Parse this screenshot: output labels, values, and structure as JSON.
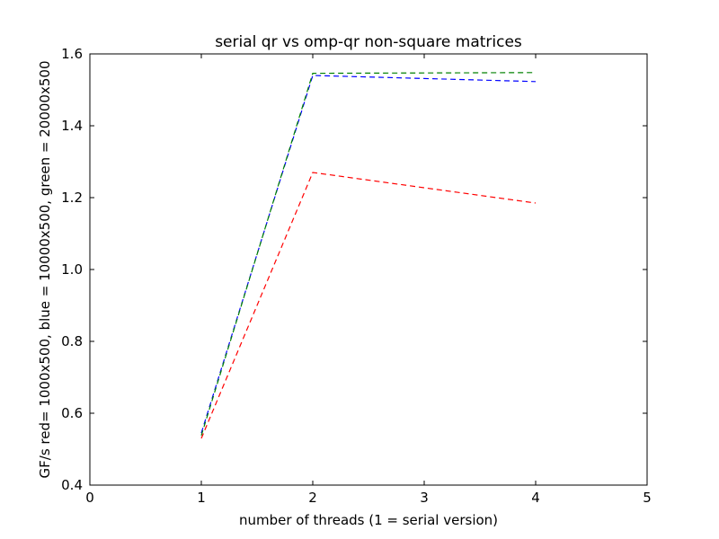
{
  "chart_data": {
    "type": "line",
    "title": "serial qr vs omp-qr non-square matrices",
    "xlabel": "number of threads (1 = serial version)",
    "ylabel": "GF/s red= 1000x500, blue = 10000x500, green = 20000x500",
    "xlim": [
      0,
      5
    ],
    "ylim": [
      0.4,
      1.6
    ],
    "xticks": [
      0,
      1,
      2,
      3,
      4,
      5
    ],
    "yticks": [
      0.4,
      0.6,
      0.8,
      1.0,
      1.2,
      1.4,
      1.6
    ],
    "xtick_labels": [
      "0",
      "1",
      "2",
      "3",
      "4",
      "5"
    ],
    "ytick_labels": [
      "0.4",
      "0.6",
      "0.8",
      "1.0",
      "1.2",
      "1.4",
      "1.6"
    ],
    "grid": false,
    "legend": "none",
    "line_style": "dashed",
    "x": [
      1,
      2,
      4
    ],
    "series": [
      {
        "color": "#ff0000",
        "values": [
          0.53,
          1.27,
          1.185
        ]
      },
      {
        "color": "#0000ff",
        "values": [
          0.545,
          1.54,
          1.523
        ]
      },
      {
        "color": "#008000",
        "values": [
          0.538,
          1.546,
          1.548
        ]
      }
    ]
  }
}
